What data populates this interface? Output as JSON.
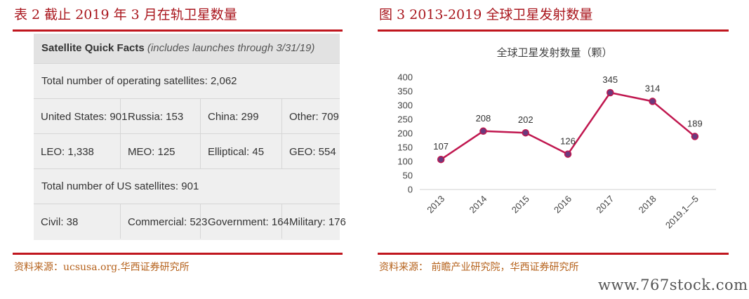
{
  "left_panel": {
    "title": "表 2 截止 2019 年 3 月在轨卫星数量",
    "source": "资料来源：ucsusa.org.华西证券研究所",
    "table": {
      "heading_bold": "Satellite Quick Facts",
      "heading_note": "(includes launches through 3/31/19)",
      "total_operating": "Total number of operating satellites: 2,062",
      "by_country": [
        "United States: 901",
        "Russia: 153",
        "China: 299",
        "Other: 709"
      ],
      "by_orbit": [
        "LEO: 1,338",
        "MEO: 125",
        "Elliptical: 45",
        "GEO: 554"
      ],
      "total_us": "Total number of US satellites: 901",
      "by_user": [
        "Civil: 38",
        "Commercial: 523",
        "Government: 164",
        "Military: 176"
      ]
    }
  },
  "right_panel": {
    "title": "图 3 2013-2019 全球卫星发射数量",
    "source": "资料来源： 前瞻产业研究院，华西证券研究所"
  },
  "watermark": "www.767stock.com",
  "chart_data": {
    "type": "line",
    "title": "全球卫星发射数量（颗）",
    "categories": [
      "2013",
      "2014",
      "2015",
      "2016",
      "2017",
      "2018",
      "2019.1—5"
    ],
    "series": [
      {
        "values": [
          107,
          208,
          202,
          126,
          345,
          314,
          189
        ]
      }
    ],
    "data_labels": [
      "107",
      "208",
      "202",
      "126",
      "345",
      "314",
      "189"
    ],
    "ylim": [
      0,
      400
    ],
    "yticks": [
      0,
      50,
      100,
      150,
      200,
      250,
      300,
      350,
      400
    ],
    "grid": false,
    "legend": "none",
    "line_color": "#c0174f",
    "marker_fill": "#6b3a7d"
  }
}
